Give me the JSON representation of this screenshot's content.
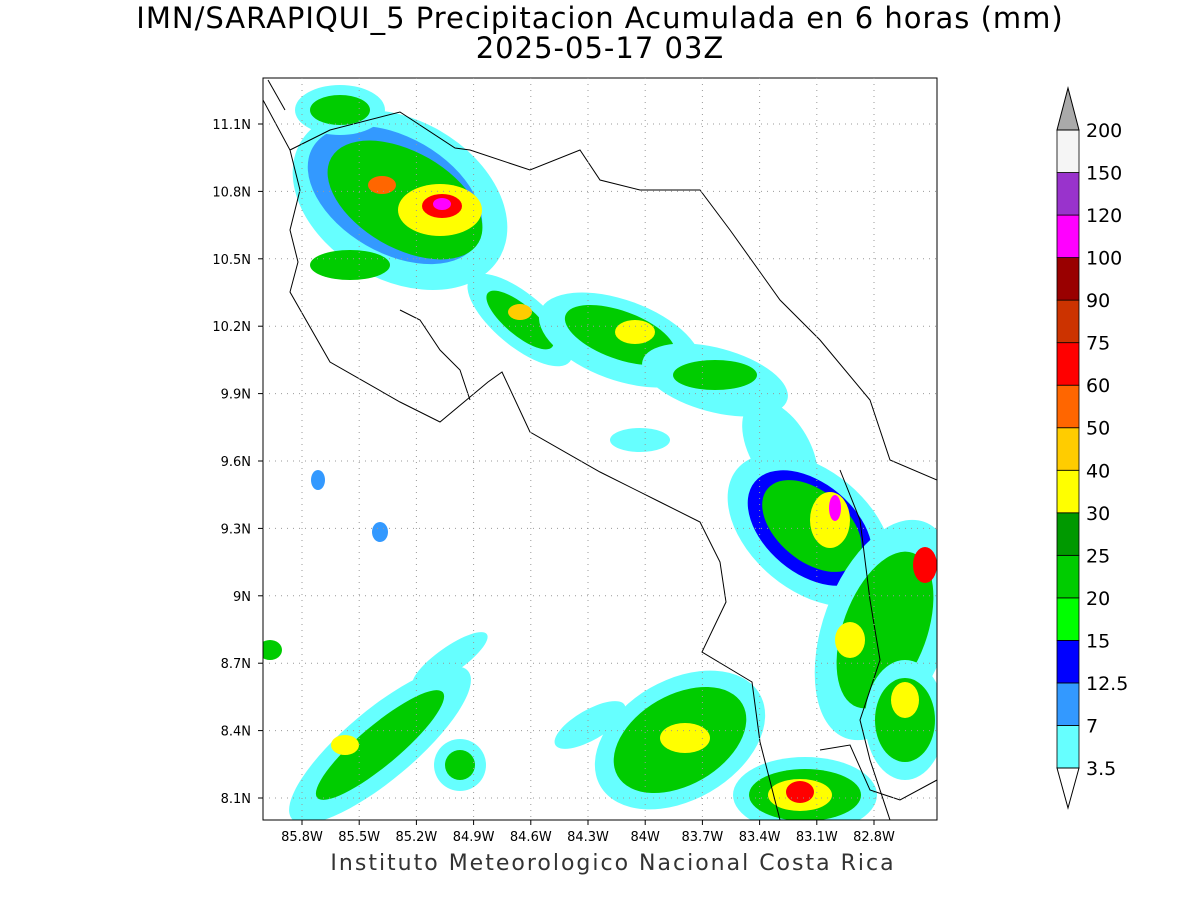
{
  "header": {
    "title": "IMN/SARAPIQUI_5 Precipitacion Acumulada en 6 horas (mm)",
    "subtitle": "2025-05-17 03Z"
  },
  "map": {
    "lat_labels": [
      "11.1N",
      "10.8N",
      "10.5N",
      "10.2N",
      "9.9N",
      "9.6N",
      "9.3N",
      "9N",
      "8.7N",
      "8.4N",
      "8.1N"
    ],
    "lon_labels": [
      "85.8W",
      "85.5W",
      "85.2W",
      "84.9W",
      "84.6W",
      "84.3W",
      "84W",
      "83.7W",
      "83.4W",
      "83.1W",
      "82.8W"
    ],
    "grid": true
  },
  "colorbar": {
    "levels": [
      3.5,
      7,
      12.5,
      15,
      20,
      25,
      30,
      40,
      50,
      60,
      75,
      90,
      100,
      120,
      150,
      200
    ],
    "colors": [
      "#66ffff",
      "#3399ff",
      "#0000ff",
      "#00ff00",
      "#00cc00",
      "#009900",
      "#ffff00",
      "#ffcc00",
      "#ff6600",
      "#ff0000",
      "#cc3300",
      "#990000",
      "#ff00ff",
      "#9933cc",
      "#f5f5f5"
    ],
    "over_color": "#aaaaaa",
    "under_color": "#ffffff"
  },
  "footer": "Instituto Meteorologico Nacional Costa Rica"
}
